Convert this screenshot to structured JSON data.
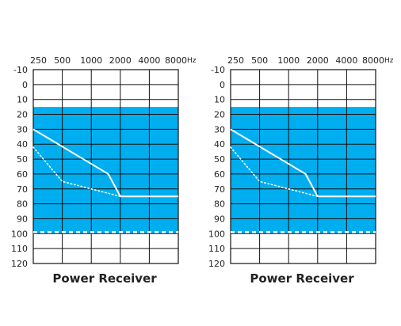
{
  "chart_data": [
    {
      "type": "line",
      "title": "Power Receiver",
      "x_unit": "Hz",
      "x_ticks": [
        "250",
        "500",
        "1000",
        "2000",
        "4000",
        "8000"
      ],
      "y_ticks": [
        "-10",
        "0",
        "10",
        "20",
        "30",
        "40",
        "50",
        "60",
        "70",
        "80",
        "90",
        "100",
        "110",
        "120"
      ],
      "ylim": [
        -10,
        120
      ],
      "y_inverted": true,
      "fill_band": {
        "from": 15,
        "to": 100,
        "color": "#00aeef"
      },
      "series": [
        {
          "style": "solid",
          "color": "#ffffff",
          "x": [
            250,
            1500,
            2000,
            8000
          ],
          "values": [
            30,
            60,
            75,
            75
          ]
        },
        {
          "style": "dotted",
          "color": "#ffffff",
          "x": [
            250,
            500,
            1000,
            2000,
            8000
          ],
          "values": [
            42,
            65,
            70,
            75,
            75
          ]
        },
        {
          "style": "dashed",
          "color": "#ffffff",
          "x": [
            250,
            8000
          ],
          "values": [
            99,
            99
          ]
        }
      ],
      "grid": true
    },
    {
      "type": "line",
      "title": "Power Receiver",
      "x_unit": "Hz",
      "x_ticks": [
        "250",
        "500",
        "1000",
        "2000",
        "4000",
        "8000"
      ],
      "y_ticks": [
        "-10",
        "0",
        "10",
        "20",
        "30",
        "40",
        "50",
        "60",
        "70",
        "80",
        "90",
        "100",
        "110",
        "120"
      ],
      "ylim": [
        -10,
        120
      ],
      "y_inverted": true,
      "fill_band": {
        "from": 15,
        "to": 100,
        "color": "#00aeef"
      },
      "series": [
        {
          "style": "solid",
          "color": "#ffffff",
          "x": [
            250,
            1500,
            2000,
            8000
          ],
          "values": [
            30,
            60,
            75,
            75
          ]
        },
        {
          "style": "dotted",
          "color": "#ffffff",
          "x": [
            250,
            500,
            1000,
            2000,
            8000
          ],
          "values": [
            42,
            65,
            70,
            75,
            75
          ]
        },
        {
          "style": "dashed",
          "color": "#ffffff",
          "x": [
            250,
            8000
          ],
          "values": [
            99,
            99
          ]
        }
      ],
      "grid": true
    }
  ]
}
